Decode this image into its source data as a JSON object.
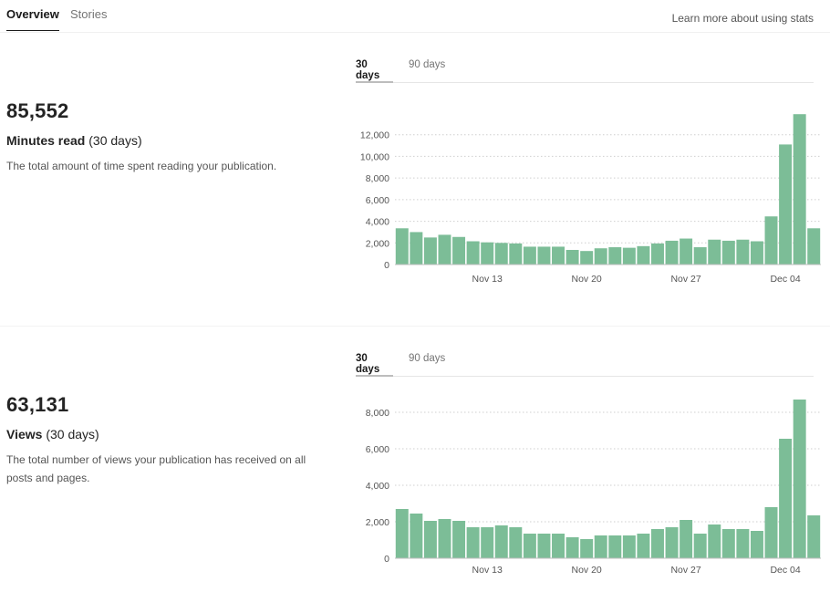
{
  "nav": {
    "tabs": [
      {
        "label": "Overview",
        "active": true
      },
      {
        "label": "Stories",
        "active": false
      }
    ],
    "learn_link": "Learn more about using stats"
  },
  "colors": {
    "bar": "#7cbd97",
    "text": "#292929"
  },
  "minutes": {
    "value": "85,552",
    "title": "Minutes read",
    "period": "(30 days)",
    "description": "The total amount of time spent reading your publication.",
    "range_tabs": [
      "30 days",
      "90 days"
    ]
  },
  "views": {
    "value": "63,131",
    "title": "Views",
    "period": "(30 days)",
    "description": "The total number of views your publication has received on all posts and pages.",
    "range_tabs": [
      "30 days",
      "90 days"
    ]
  },
  "chart_data": [
    {
      "type": "bar",
      "yticks": [
        "0",
        "2,000",
        "4,000",
        "6,000",
        "8,000",
        "10,000",
        "12,000"
      ],
      "ylim": [
        0,
        14000
      ],
      "xtick_labels": [
        "Nov 13",
        "Nov 20",
        "Nov 27",
        "Dec 04"
      ],
      "xtick_positions": [
        6,
        13,
        20,
        27
      ],
      "grid": true,
      "values": [
        3350,
        3000,
        2500,
        2750,
        2550,
        2150,
        2050,
        2000,
        1950,
        1650,
        1650,
        1650,
        1350,
        1250,
        1500,
        1600,
        1550,
        1700,
        1950,
        2200,
        2400,
        1600,
        2300,
        2200,
        2300,
        2150,
        4450,
        11100,
        13900,
        3350
      ]
    },
    {
      "type": "bar",
      "yticks": [
        "0",
        "2,000",
        "4,000",
        "6,000",
        "8,000"
      ],
      "ylim": [
        0,
        8800
      ],
      "xtick_labels": [
        "Nov 13",
        "Nov 20",
        "Nov 27",
        "Dec 04"
      ],
      "xtick_positions": [
        6,
        13,
        20,
        27
      ],
      "grid": true,
      "values": [
        2700,
        2450,
        2050,
        2150,
        2050,
        1700,
        1700,
        1800,
        1700,
        1350,
        1350,
        1350,
        1150,
        1050,
        1250,
        1250,
        1250,
        1350,
        1600,
        1700,
        2100,
        1350,
        1850,
        1600,
        1600,
        1500,
        2800,
        6550,
        8700,
        2350
      ]
    }
  ]
}
